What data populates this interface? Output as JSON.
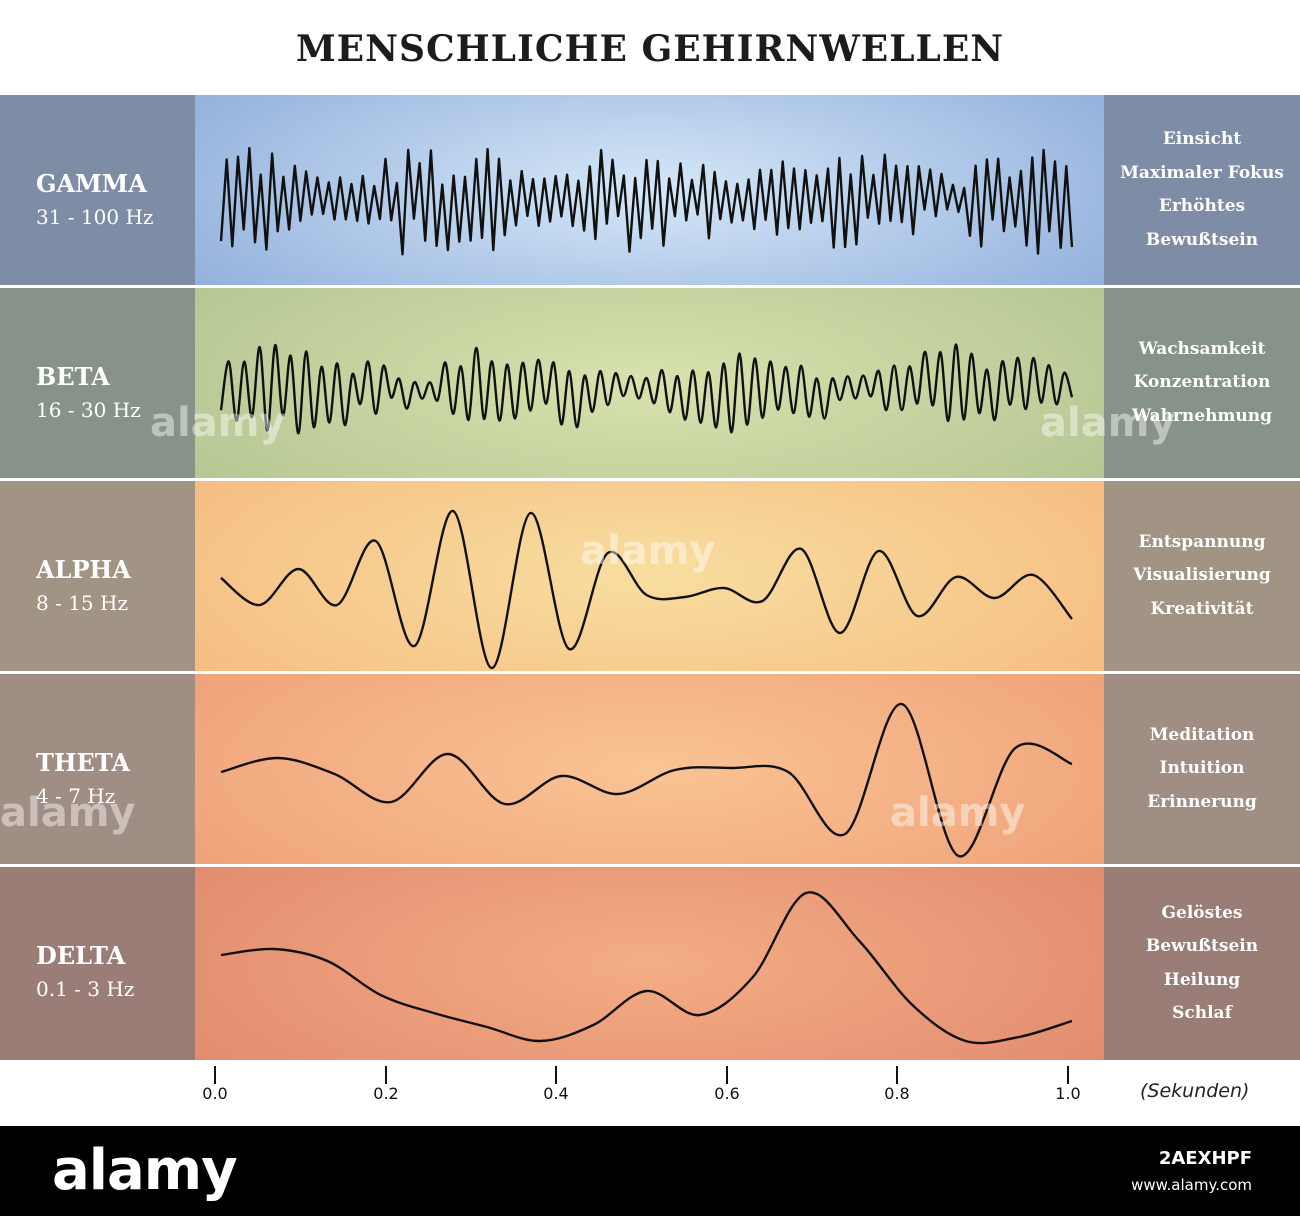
{
  "title": "MENSCHLICHE GEHIRNWELLEN",
  "colors": {
    "divider": "#ffffff",
    "wave_line": "#111111"
  },
  "bands": [
    {
      "name": "GAMMA",
      "freq": "31 - 100 Hz",
      "descriptions": [
        "Einsicht",
        "Maximaler Fokus",
        "Erhöhtes",
        "Bewußtsein"
      ],
      "side_color": "#7f8ca6",
      "center_edge": "#93b0dc",
      "center_mid": "#d6e8f8"
    },
    {
      "name": "BETA",
      "freq": "16 - 30 Hz",
      "descriptions": [
        "Wachsamkeit",
        "Konzentration",
        "Wahrnehmung"
      ],
      "side_color": "#879289",
      "center_edge": "#b5c694",
      "center_mid": "#d8e2ad"
    },
    {
      "name": "ALPHA",
      "freq": "8 - 15 Hz",
      "descriptions": [
        "Entspannung",
        "Visualisierung",
        "Kreativität"
      ],
      "side_color": "#a19485",
      "center_edge": "#f6bd82",
      "center_mid": "#f8dea0"
    },
    {
      "name": "THETA",
      "freq": "4 - 7 Hz",
      "descriptions": [
        "Meditation",
        "Intuition",
        "Erinnerung"
      ],
      "side_color": "#a08d84",
      "center_edge": "#f0a27a",
      "center_mid": "#f9c494"
    },
    {
      "name": "DELTA",
      "freq": "0.1 - 3 Hz",
      "descriptions": [
        "Gelöstes",
        "Bewußtsein",
        "Heilung",
        "Schlaf"
      ],
      "side_color": "#9a7d77",
      "center_edge": "#e28c70",
      "center_mid": "#f4ad84"
    }
  ],
  "axis": {
    "ticks": [
      "0.0",
      "0.2",
      "0.4",
      "0.6",
      "0.8",
      "1.0"
    ],
    "tick_values": [
      0.0,
      0.2,
      0.4,
      0.6,
      0.8,
      1.0
    ],
    "unit": "(Sekunden)"
  },
  "watermark": {
    "logo": "alamy",
    "image_id": "2AEXHPF",
    "url": "www.alamy.com"
  }
}
